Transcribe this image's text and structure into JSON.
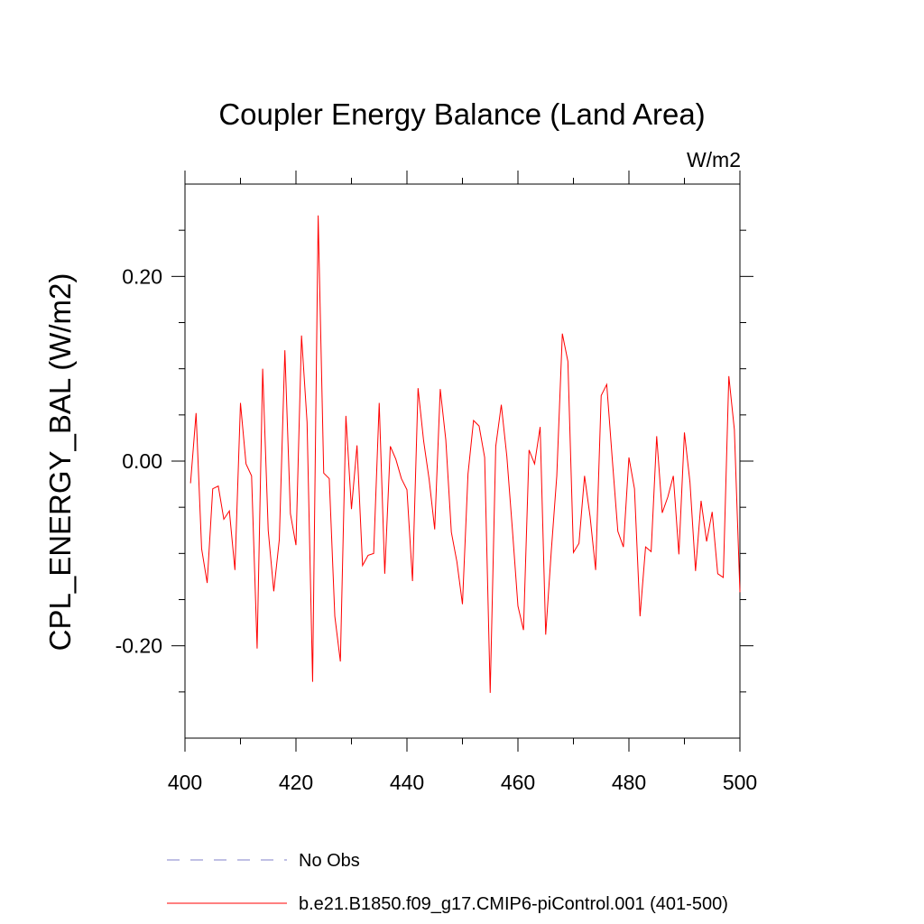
{
  "chart_data": {
    "type": "line",
    "title": "Coupler Energy Balance (Land Area)",
    "units_label": "W/m2",
    "xlabel": "",
    "ylabel": "CPL_ENERGY_BAL  (W/m2)",
    "xlim": [
      400,
      500
    ],
    "ylim": [
      -0.3,
      0.3
    ],
    "x_major_ticks": [
      400,
      420,
      440,
      460,
      480,
      500
    ],
    "x_tick_labels": [
      "400",
      "420",
      "440",
      "460",
      "480",
      "500"
    ],
    "x_minor_step": 10,
    "y_major_ticks": [
      -0.2,
      0.0,
      0.2
    ],
    "y_tick_labels": [
      "-0.20",
      "0.00",
      "0.20"
    ],
    "y_minor_step": 0.05,
    "grid": false,
    "legend_placement": "bottom",
    "series": [
      {
        "name": "b.e21.B1850.f09_g17.CMIP6-piControl.001 (401-500)",
        "color": "#ff0000",
        "style": "solid",
        "x": [
          401,
          402,
          403,
          404,
          405,
          406,
          407,
          408,
          409,
          410,
          411,
          412,
          413,
          414,
          415,
          416,
          417,
          418,
          419,
          420,
          421,
          422,
          423,
          424,
          425,
          426,
          427,
          428,
          429,
          430,
          431,
          432,
          433,
          434,
          435,
          436,
          437,
          438,
          439,
          440,
          441,
          442,
          443,
          444,
          445,
          446,
          447,
          448,
          449,
          450,
          451,
          452,
          453,
          454,
          455,
          456,
          457,
          458,
          459,
          460,
          461,
          462,
          463,
          464,
          465,
          466,
          467,
          468,
          469,
          470,
          471,
          472,
          473,
          474,
          475,
          476,
          477,
          478,
          479,
          480,
          481,
          482,
          483,
          484,
          485,
          486,
          487,
          488,
          489,
          490,
          491,
          492,
          493,
          494,
          495,
          496,
          497,
          498,
          499,
          500
        ],
        "values": [
          -0.024,
          0.052,
          -0.095,
          -0.132,
          -0.03,
          -0.027,
          -0.063,
          -0.054,
          -0.118,
          0.063,
          -0.003,
          -0.016,
          -0.203,
          0.1,
          -0.075,
          -0.141,
          -0.085,
          0.12,
          -0.057,
          -0.091,
          0.136,
          0.042,
          -0.239,
          0.266,
          -0.013,
          -0.019,
          -0.168,
          -0.217,
          0.049,
          -0.052,
          0.017,
          -0.113,
          -0.102,
          -0.1,
          0.063,
          -0.122,
          0.016,
          0.002,
          -0.019,
          -0.031,
          -0.13,
          0.079,
          0.022,
          -0.02,
          -0.074,
          0.078,
          0.023,
          -0.077,
          -0.109,
          -0.155,
          -0.014,
          0.044,
          0.038,
          0.004,
          -0.251,
          0.016,
          0.061,
          0.005,
          -0.074,
          -0.157,
          -0.183,
          0.012,
          -0.003,
          0.037,
          -0.188,
          -0.098,
          -0.016,
          0.138,
          0.108,
          -0.099,
          -0.089,
          -0.016,
          -0.06,
          -0.118,
          0.071,
          0.083,
          0.002,
          -0.076,
          -0.093,
          0.004,
          -0.03,
          -0.168,
          -0.093,
          -0.098,
          0.027,
          -0.056,
          -0.039,
          -0.016,
          -0.101,
          0.031,
          -0.023,
          -0.119,
          -0.043,
          -0.087,
          -0.055,
          -0.122,
          -0.126,
          0.092,
          0.034,
          -0.142
        ]
      },
      {
        "name": "No Obs",
        "color": "#8080c8",
        "style": "dashed",
        "x": [],
        "values": []
      }
    ]
  }
}
